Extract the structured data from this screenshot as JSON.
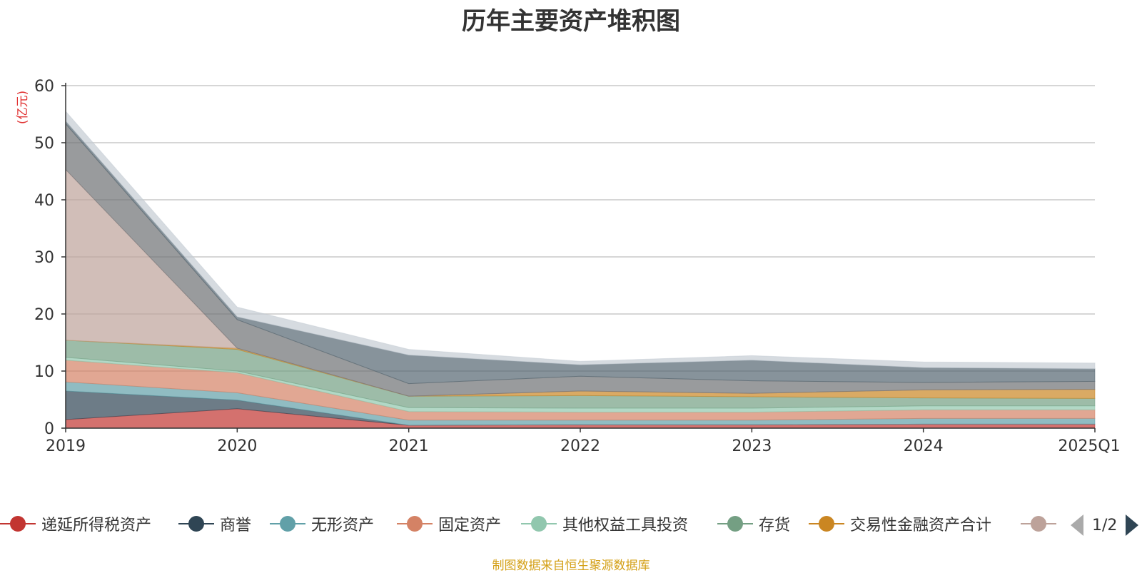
{
  "chart_data": {
    "type": "area",
    "stacked": true,
    "title": "历年主要资产堆积图",
    "ylabel": "(亿元)",
    "xlabel": "",
    "ylim": [
      0,
      60
    ],
    "yticks": [
      0,
      10,
      20,
      30,
      40,
      50,
      60
    ],
    "categories": [
      "2019",
      "2020",
      "2021",
      "2022",
      "2023",
      "2024",
      "2025Q1"
    ],
    "grid": true,
    "legend_position": "bottom",
    "series": [
      {
        "name": "递延所得税资产",
        "color": "#c23531",
        "values": [
          1.5,
          3.4,
          0.5,
          0.6,
          0.6,
          0.7,
          0.7
        ]
      },
      {
        "name": "商誉",
        "color": "#2f4554",
        "values": [
          5.0,
          1.5,
          0.0,
          0.0,
          0.0,
          0.0,
          0.0
        ]
      },
      {
        "name": "无形资产",
        "color": "#61a0a8",
        "values": [
          1.6,
          1.3,
          0.9,
          0.8,
          0.8,
          1.0,
          1.0
        ]
      },
      {
        "name": "固定资产",
        "color": "#d48265",
        "values": [
          3.8,
          3.5,
          1.5,
          1.4,
          1.4,
          1.5,
          1.5
        ]
      },
      {
        "name": "其他权益工具投资",
        "color": "#91c7ae",
        "values": [
          0.5,
          0.3,
          0.7,
          0.7,
          0.7,
          0.7,
          0.7
        ]
      },
      {
        "name": "存货",
        "color": "#749f83",
        "values": [
          3.0,
          3.8,
          2.0,
          2.2,
          2.0,
          1.4,
          1.3
        ]
      },
      {
        "name": "交易性金融资产合计",
        "color": "#ca8622",
        "values": [
          0.0,
          0.2,
          0.0,
          0.8,
          0.6,
          1.4,
          1.6
        ]
      },
      {
        "name": "",
        "color": "#bda29a",
        "values": [
          29.9,
          0.0,
          0.0,
          0.0,
          0.0,
          0.0,
          0.0
        ]
      },
      {
        "name": "",
        "color": "#6e7074",
        "values": [
          8.0,
          5.0,
          2.2,
          2.6,
          2.2,
          1.3,
          1.4
        ]
      },
      {
        "name": "",
        "color": "#546570",
        "values": [
          0.5,
          0.5,
          5.0,
          2.0,
          3.6,
          2.6,
          2.2
        ]
      },
      {
        "name": "",
        "color": "#c4ccd3",
        "values": [
          1.7,
          1.7,
          1.0,
          0.6,
          0.8,
          1.0,
          1.0
        ]
      }
    ]
  },
  "legend": {
    "items": [
      {
        "label": "递延所得税资产",
        "color": "#c23531"
      },
      {
        "label": "商誉",
        "color": "#2f4554"
      },
      {
        "label": "无形资产",
        "color": "#61a0a8"
      },
      {
        "label": "固定资产",
        "color": "#d48265"
      },
      {
        "label": "其他权益工具投资",
        "color": "#91c7ae"
      },
      {
        "label": "存货",
        "color": "#749f83"
      },
      {
        "label": "交易性金融资产合计",
        "color": "#ca8622"
      },
      {
        "label": "",
        "color": "#bda29a"
      }
    ],
    "pager": {
      "text": "1/2"
    }
  },
  "source_note": "制图数据来自恒生聚源数据库"
}
